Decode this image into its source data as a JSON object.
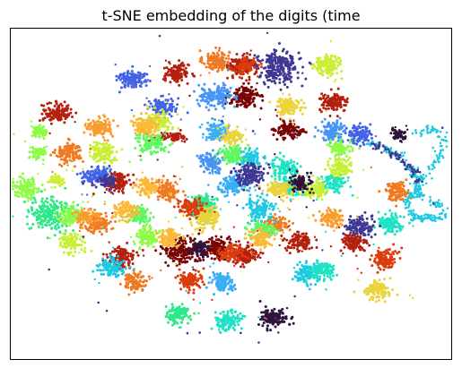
{
  "chart_data": {
    "type": "scatter",
    "title": "t-SNE embedding of the digits (time",
    "xlabel": "",
    "ylabel": "",
    "axes_visible": false,
    "grid": false,
    "legend": "none",
    "xlim": [
      0,
      1
    ],
    "ylim": [
      0,
      1
    ],
    "colormap": "turbo",
    "series": [
      {
        "color": "#f07a22",
        "clusters": [
          {
            "cx": 0.466,
            "cy": 0.903,
            "n": 130,
            "sx": 0.024,
            "sy": 0.025
          },
          {
            "cx": 0.133,
            "cy": 0.624,
            "n": 130,
            "sx": 0.024,
            "sy": 0.025
          },
          {
            "cx": 0.198,
            "cy": 0.411,
            "n": 130,
            "sx": 0.025,
            "sy": 0.025
          },
          {
            "cx": 0.356,
            "cy": 0.509,
            "n": 130,
            "sx": 0.022,
            "sy": 0.024
          },
          {
            "cx": 0.878,
            "cy": 0.508,
            "n": 110,
            "sx": 0.023,
            "sy": 0.022
          },
          {
            "cx": 0.602,
            "cy": 0.407,
            "n": 100,
            "sx": 0.022,
            "sy": 0.022
          },
          {
            "cx": 0.282,
            "cy": 0.235,
            "n": 110,
            "sx": 0.023,
            "sy": 0.023
          }
        ]
      },
      {
        "color": "#b5200e",
        "clusters": [
          {
            "cx": 0.377,
            "cy": 0.865,
            "n": 130,
            "sx": 0.022,
            "sy": 0.022
          },
          {
            "cx": 0.526,
            "cy": 0.887,
            "n": 130,
            "sx": 0.025,
            "sy": 0.026
          },
          {
            "cx": 0.106,
            "cy": 0.745,
            "n": 130,
            "sx": 0.026,
            "sy": 0.022
          },
          {
            "cx": 0.733,
            "cy": 0.775,
            "n": 120,
            "sx": 0.026,
            "sy": 0.021
          },
          {
            "cx": 0.244,
            "cy": 0.538,
            "n": 120,
            "sx": 0.023,
            "sy": 0.022
          },
          {
            "cx": 0.251,
            "cy": 0.307,
            "n": 120,
            "sx": 0.025,
            "sy": 0.026
          },
          {
            "cx": 0.528,
            "cy": 0.315,
            "n": 140,
            "sx": 0.027,
            "sy": 0.026
          },
          {
            "cx": 0.779,
            "cy": 0.352,
            "n": 120,
            "sx": 0.024,
            "sy": 0.024
          },
          {
            "cx": 0.655,
            "cy": 0.354,
            "n": 110,
            "sx": 0.024,
            "sy": 0.023
          },
          {
            "cx": 0.364,
            "cy": 0.673,
            "n": 60,
            "sx": 0.035,
            "sy": 0.012
          }
        ]
      },
      {
        "color": "#7a0403",
        "clusters": [
          {
            "cx": 0.531,
            "cy": 0.792,
            "n": 130,
            "sx": 0.028,
            "sy": 0.024
          },
          {
            "cx": 0.634,
            "cy": 0.693,
            "n": 120,
            "sx": 0.026,
            "sy": 0.021
          },
          {
            "cx": 0.386,
            "cy": 0.328,
            "n": 180,
            "sx": 0.035,
            "sy": 0.03
          },
          {
            "cx": 0.466,
            "cy": 0.338,
            "n": 120,
            "sx": 0.022,
            "sy": 0.025
          }
        ]
      },
      {
        "color": "#4462e6",
        "clusters": [
          {
            "cx": 0.274,
            "cy": 0.848,
            "n": 130,
            "sx": 0.026,
            "sy": 0.022
          },
          {
            "cx": 0.346,
            "cy": 0.763,
            "n": 120,
            "sx": 0.024,
            "sy": 0.021
          },
          {
            "cx": 0.194,
            "cy": 0.555,
            "n": 120,
            "sx": 0.025,
            "sy": 0.021
          },
          {
            "cx": 0.789,
            "cy": 0.679,
            "n": 110,
            "sx": 0.022,
            "sy": 0.023
          }
        ]
      },
      {
        "color": "#4694f5",
        "clusters": [
          {
            "cx": 0.466,
            "cy": 0.797,
            "n": 140,
            "sx": 0.032,
            "sy": 0.025
          },
          {
            "cx": 0.732,
            "cy": 0.688,
            "n": 120,
            "sx": 0.023,
            "sy": 0.025
          },
          {
            "cx": 0.456,
            "cy": 0.596,
            "n": 110,
            "sx": 0.021,
            "sy": 0.022
          }
        ]
      },
      {
        "color": "#3aaef5",
        "clusters": [
          {
            "cx": 0.467,
            "cy": 0.69,
            "n": 110,
            "sx": 0.021,
            "sy": 0.022
          },
          {
            "cx": 0.505,
            "cy": 0.53,
            "n": 120,
            "sx": 0.024,
            "sy": 0.022
          },
          {
            "cx": 0.483,
            "cy": 0.233,
            "n": 110,
            "sx": 0.023,
            "sy": 0.022
          }
        ]
      },
      {
        "color": "#1fc9e1",
        "clusters": [
          {
            "cx": 0.564,
            "cy": 0.452,
            "n": 130,
            "sx": 0.026,
            "sy": 0.026
          },
          {
            "cx": 0.542,
            "cy": 0.608,
            "n": 100,
            "sx": 0.022,
            "sy": 0.022
          },
          {
            "cx": 0.673,
            "cy": 0.26,
            "n": 120,
            "sx": 0.024,
            "sy": 0.023
          },
          {
            "cx": 0.227,
            "cy": 0.277,
            "n": 110,
            "sx": 0.023,
            "sy": 0.023
          }
        ]
      },
      {
        "color": "#1de2c4",
        "clusters": [
          {
            "cx": 0.622,
            "cy": 0.579,
            "n": 120,
            "sx": 0.025,
            "sy": 0.023
          },
          {
            "cx": 0.637,
            "cy": 0.521,
            "n": 120,
            "sx": 0.024,
            "sy": 0.021
          },
          {
            "cx": 0.733,
            "cy": 0.531,
            "n": 100,
            "sx": 0.022,
            "sy": 0.022
          },
          {
            "cx": 0.863,
            "cy": 0.41,
            "n": 110,
            "sx": 0.024,
            "sy": 0.022
          },
          {
            "cx": 0.708,
            "cy": 0.267,
            "n": 110,
            "sx": 0.023,
            "sy": 0.022
          },
          {
            "cx": 0.494,
            "cy": 0.116,
            "n": 120,
            "sx": 0.023,
            "sy": 0.023
          },
          {
            "cx": 0.436,
            "cy": 0.449,
            "n": 110,
            "sx": 0.022,
            "sy": 0.022
          }
        ]
      },
      {
        "color": "#2ee88a",
        "clusters": [
          {
            "cx": 0.092,
            "cy": 0.44,
            "n": 240,
            "sx": 0.04,
            "sy": 0.04
          },
          {
            "cx": 0.436,
            "cy": 0.47,
            "n": 100,
            "sx": 0.021,
            "sy": 0.021
          },
          {
            "cx": 0.376,
            "cy": 0.134,
            "n": 110,
            "sx": 0.023,
            "sy": 0.023
          }
        ]
      },
      {
        "color": "#5cf860",
        "clusters": [
          {
            "cx": 0.319,
            "cy": 0.652,
            "n": 120,
            "sx": 0.03,
            "sy": 0.025
          },
          {
            "cx": 0.501,
            "cy": 0.615,
            "n": 110,
            "sx": 0.022,
            "sy": 0.021
          },
          {
            "cx": 0.57,
            "cy": 0.393,
            "n": 90,
            "sx": 0.021,
            "sy": 0.021
          },
          {
            "cx": 0.294,
            "cy": 0.435,
            "n": 100,
            "sx": 0.021,
            "sy": 0.021
          }
        ]
      },
      {
        "color": "#8efc45",
        "clusters": [
          {
            "cx": 0.036,
            "cy": 0.517,
            "n": 130,
            "sx": 0.024,
            "sy": 0.024
          },
          {
            "cx": 0.133,
            "cy": 0.432,
            "n": 100,
            "sx": 0.021,
            "sy": 0.021
          },
          {
            "cx": 0.744,
            "cy": 0.637,
            "n": 100,
            "sx": 0.021,
            "sy": 0.021
          },
          {
            "cx": 0.311,
            "cy": 0.369,
            "n": 100,
            "sx": 0.021,
            "sy": 0.021
          },
          {
            "cx": 0.063,
            "cy": 0.623,
            "n": 60,
            "sx": 0.014,
            "sy": 0.013
          },
          {
            "cx": 0.065,
            "cy": 0.688,
            "n": 60,
            "sx": 0.014,
            "sy": 0.013
          }
        ]
      },
      {
        "color": "#c8ef34",
        "clusters": [
          {
            "cx": 0.717,
            "cy": 0.892,
            "n": 130,
            "sx": 0.025,
            "sy": 0.025
          },
          {
            "cx": 0.333,
            "cy": 0.72,
            "n": 120,
            "sx": 0.028,
            "sy": 0.022
          },
          {
            "cx": 0.208,
            "cy": 0.624,
            "n": 120,
            "sx": 0.023,
            "sy": 0.023
          },
          {
            "cx": 0.69,
            "cy": 0.515,
            "n": 100,
            "sx": 0.022,
            "sy": 0.022
          },
          {
            "cx": 0.748,
            "cy": 0.578,
            "n": 100,
            "sx": 0.022,
            "sy": 0.022
          },
          {
            "cx": 0.138,
            "cy": 0.351,
            "n": 100,
            "sx": 0.022,
            "sy": 0.022
          },
          {
            "cx": 0.103,
            "cy": 0.541,
            "n": 50,
            "sx": 0.012,
            "sy": 0.012
          }
        ]
      },
      {
        "color": "#ebd339",
        "clusters": [
          {
            "cx": 0.629,
            "cy": 0.766,
            "n": 120,
            "sx": 0.024,
            "sy": 0.022
          },
          {
            "cx": 0.443,
            "cy": 0.429,
            "n": 140,
            "sx": 0.027,
            "sy": 0.026
          },
          {
            "cx": 0.61,
            "cy": 0.51,
            "n": 110,
            "sx": 0.025,
            "sy": 0.022
          },
          {
            "cx": 0.832,
            "cy": 0.208,
            "n": 110,
            "sx": 0.024,
            "sy": 0.023
          },
          {
            "cx": 0.502,
            "cy": 0.675,
            "n": 80,
            "sx": 0.02,
            "sy": 0.02
          }
        ]
      },
      {
        "color": "#fbb938",
        "clusters": [
          {
            "cx": 0.302,
            "cy": 0.706,
            "n": 120,
            "sx": 0.024,
            "sy": 0.022
          },
          {
            "cx": 0.258,
            "cy": 0.452,
            "n": 110,
            "sx": 0.022,
            "sy": 0.022
          },
          {
            "cx": 0.36,
            "cy": 0.368,
            "n": 100,
            "sx": 0.022,
            "sy": 0.022
          },
          {
            "cx": 0.565,
            "cy": 0.363,
            "n": 100,
            "sx": 0.022,
            "sy": 0.022
          },
          {
            "cx": 0.31,
            "cy": 0.521,
            "n": 100,
            "sx": 0.022,
            "sy": 0.022
          }
        ]
      },
      {
        "color": "#fa9c2c",
        "clusters": [
          {
            "cx": 0.201,
            "cy": 0.699,
            "n": 120,
            "sx": 0.024,
            "sy": 0.022
          },
          {
            "cx": 0.726,
            "cy": 0.426,
            "n": 110,
            "sx": 0.022,
            "sy": 0.022
          },
          {
            "cx": 0.169,
            "cy": 0.43,
            "n": 80,
            "sx": 0.02,
            "sy": 0.02
          }
        ]
      },
      {
        "color": "#dc3c0d",
        "clusters": [
          {
            "cx": 0.535,
            "cy": 0.889,
            "n": 80,
            "sx": 0.022,
            "sy": 0.02
          },
          {
            "cx": 0.409,
            "cy": 0.459,
            "n": 110,
            "sx": 0.024,
            "sy": 0.022
          },
          {
            "cx": 0.848,
            "cy": 0.302,
            "n": 120,
            "sx": 0.024,
            "sy": 0.024
          },
          {
            "cx": 0.498,
            "cy": 0.321,
            "n": 110,
            "sx": 0.022,
            "sy": 0.022
          },
          {
            "cx": 0.405,
            "cy": 0.239,
            "n": 110,
            "sx": 0.023,
            "sy": 0.023
          }
        ]
      },
      {
        "color": "#3e3894",
        "clusters": [
          {
            "cx": 0.607,
            "cy": 0.885,
            "n": 240,
            "sx": 0.035,
            "sy": 0.04
          },
          {
            "cx": 0.541,
            "cy": 0.555,
            "n": 140,
            "sx": 0.028,
            "sy": 0.025
          },
          {
            "cx": 0.795,
            "cy": 0.4,
            "n": 120,
            "sx": 0.026,
            "sy": 0.026
          },
          {
            "cx": 0.218,
            "cy": 0.537,
            "n": 60,
            "sx": 0.016,
            "sy": 0.014
          }
        ]
      },
      {
        "color": "#30123b",
        "clusters": [
          {
            "cx": 0.597,
            "cy": 0.125,
            "n": 130,
            "sx": 0.024,
            "sy": 0.023
          },
          {
            "cx": 0.659,
            "cy": 0.534,
            "n": 80,
            "sx": 0.02,
            "sy": 0.02
          },
          {
            "cx": 0.88,
            "cy": 0.678,
            "n": 60,
            "sx": 0.014,
            "sy": 0.016
          },
          {
            "cx": 0.43,
            "cy": 0.334,
            "n": 70,
            "sx": 0.02,
            "sy": 0.018
          }
        ]
      }
    ],
    "trail_series": [
      {
        "color": "#1fc9e1",
        "points": [
          [
            0.81,
            0.655
          ],
          [
            0.845,
            0.645
          ],
          [
            0.877,
            0.618
          ],
          [
            0.905,
            0.579
          ],
          [
            0.921,
            0.552
          ],
          [
            0.922,
            0.52
          ],
          [
            0.908,
            0.497
          ],
          [
            0.9,
            0.46
          ],
          [
            0.91,
            0.43
          ],
          [
            0.935,
            0.425
          ],
          [
            0.96,
            0.43
          ],
          [
            0.985,
            0.43
          ],
          [
            0.97,
            0.47
          ],
          [
            0.93,
            0.49
          ],
          [
            0.92,
            0.52
          ],
          [
            0.945,
            0.56
          ],
          [
            0.97,
            0.61
          ],
          [
            0.983,
            0.665
          ],
          [
            0.96,
            0.7
          ],
          [
            0.915,
            0.68
          ]
        ],
        "spread": 0.006,
        "n": 360
      },
      {
        "color": "#3e3894",
        "points": [
          [
            0.825,
            0.645
          ],
          [
            0.86,
            0.63
          ],
          [
            0.89,
            0.605
          ],
          [
            0.912,
            0.572
          ],
          [
            0.93,
            0.538
          ]
        ],
        "spread": 0.006,
        "n": 80
      }
    ],
    "outlier_points": {
      "color": "#3e3894",
      "xy": [
        [
          0.338,
          0.978
        ],
        [
          0.087,
          0.271
        ],
        [
          0.199,
          0.171
        ],
        [
          0.218,
          0.146
        ],
        [
          0.401,
          0.078
        ],
        [
          0.429,
          0.08
        ],
        [
          0.563,
          0.05
        ],
        [
          0.522,
          0.079
        ],
        [
          0.96,
          0.47
        ],
        [
          0.645,
          0.19
        ],
        [
          0.48,
          0.72
        ],
        [
          0.98,
          0.7
        ],
        [
          0.165,
          0.37
        ],
        [
          0.55,
          0.69
        ]
      ]
    }
  }
}
